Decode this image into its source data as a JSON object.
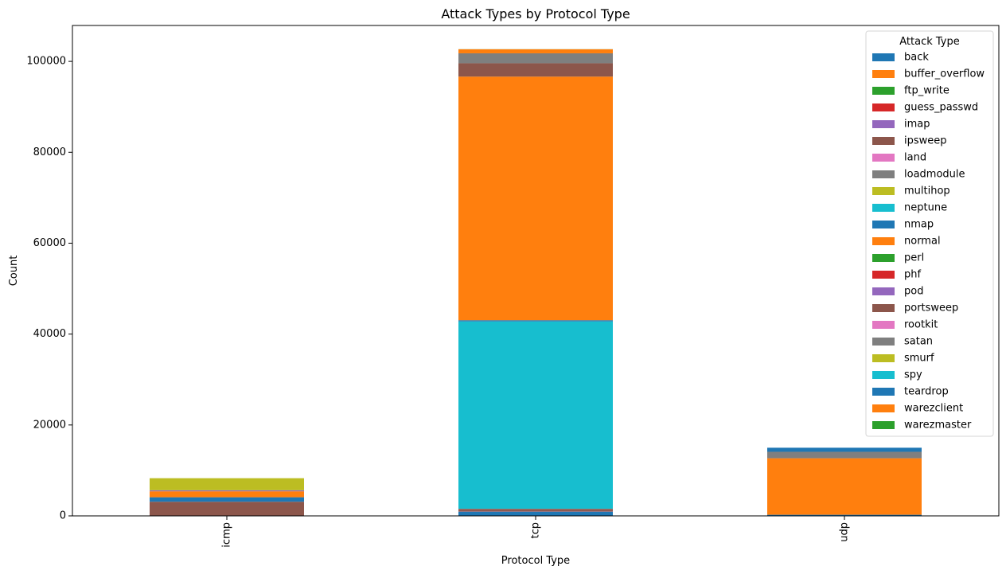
{
  "chart_data": {
    "type": "bar",
    "stacked": true,
    "title": "Attack Types by Protocol Type",
    "xlabel": "Protocol Type",
    "ylabel": "Count",
    "ylim": [
      0,
      107900
    ],
    "yticks": [
      0,
      20000,
      40000,
      60000,
      80000,
      100000
    ],
    "categories": [
      "icmp",
      "tcp",
      "udp"
    ],
    "legend": {
      "title": "Attack Type",
      "position": "top-right"
    },
    "series": [
      {
        "name": "back",
        "color": "#1f77b4",
        "values": [
          0,
          956,
          0
        ]
      },
      {
        "name": "buffer_overflow",
        "color": "#ff7f0e",
        "values": [
          0,
          30,
          0
        ]
      },
      {
        "name": "ftp_write",
        "color": "#2ca02c",
        "values": [
          0,
          8,
          0
        ]
      },
      {
        "name": "guess_passwd",
        "color": "#d62728",
        "values": [
          0,
          53,
          0
        ]
      },
      {
        "name": "imap",
        "color": "#9467bd",
        "values": [
          0,
          11,
          0
        ]
      },
      {
        "name": "ipsweep",
        "color": "#8c564b",
        "values": [
          3117,
          482,
          0
        ]
      },
      {
        "name": "land",
        "color": "#e377c2",
        "values": [
          0,
          18,
          0
        ]
      },
      {
        "name": "loadmodule",
        "color": "#7f7f7f",
        "values": [
          0,
          9,
          0
        ]
      },
      {
        "name": "multihop",
        "color": "#bcbd22",
        "values": [
          0,
          5,
          2
        ]
      },
      {
        "name": "neptune",
        "color": "#17becf",
        "values": [
          0,
          41214,
          0
        ]
      },
      {
        "name": "nmap",
        "color": "#1f77b4",
        "values": [
          981,
          265,
          247
        ]
      },
      {
        "name": "normal",
        "color": "#ff7f0e",
        "values": [
          1309,
          53600,
          12434
        ]
      },
      {
        "name": "perl",
        "color": "#2ca02c",
        "values": [
          0,
          3,
          0
        ]
      },
      {
        "name": "phf",
        "color": "#d62728",
        "values": [
          0,
          4,
          0
        ]
      },
      {
        "name": "pod",
        "color": "#9467bd",
        "values": [
          201,
          0,
          0
        ]
      },
      {
        "name": "portsweep",
        "color": "#8c564b",
        "values": [
          5,
          2926,
          0
        ]
      },
      {
        "name": "rootkit",
        "color": "#e377c2",
        "values": [
          0,
          7,
          3
        ]
      },
      {
        "name": "satan",
        "color": "#7f7f7f",
        "values": [
          32,
          2184,
          1417
        ]
      },
      {
        "name": "smurf",
        "color": "#bcbd22",
        "values": [
          2646,
          0,
          0
        ]
      },
      {
        "name": "spy",
        "color": "#17becf",
        "values": [
          0,
          2,
          0
        ]
      },
      {
        "name": "teardrop",
        "color": "#1f77b4",
        "values": [
          0,
          0,
          892
        ]
      },
      {
        "name": "warezclient",
        "color": "#ff7f0e",
        "values": [
          0,
          890,
          0
        ]
      },
      {
        "name": "warezmaster",
        "color": "#2ca02c",
        "values": [
          0,
          20,
          0
        ]
      }
    ]
  }
}
